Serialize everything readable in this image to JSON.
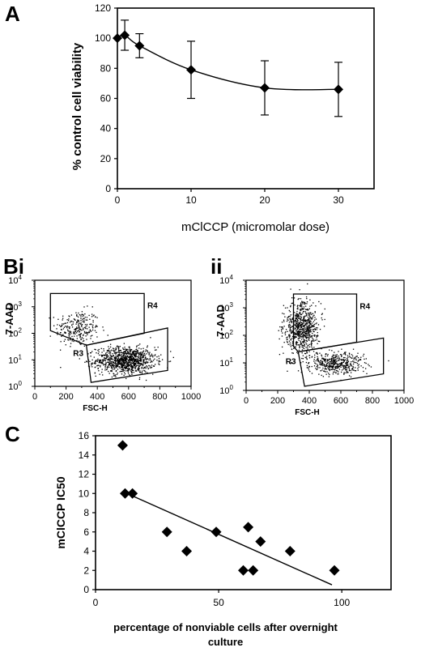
{
  "panel_labels": {
    "a": "A",
    "bi": "Bi",
    "bii": "ii",
    "c": "C"
  },
  "chart_data": [
    {
      "id": "A",
      "type": "line",
      "title": "",
      "xlabel": "mClCCP (micromolar dose)",
      "ylabel": "% control cell viability",
      "xlim": [
        0,
        30
      ],
      "ylim": [
        0,
        120
      ],
      "xticks": [
        0,
        10,
        20,
        30
      ],
      "yticks": [
        0,
        20,
        40,
        60,
        80,
        100,
        120
      ],
      "grid": false,
      "series": [
        {
          "x": [
            0,
            1,
            3,
            10,
            20,
            30
          ],
          "y": [
            100,
            102,
            95,
            79,
            67,
            66
          ],
          "err": [
            0,
            10,
            8,
            19,
            18,
            18
          ]
        }
      ]
    },
    {
      "id": "Bi",
      "type": "scatter",
      "title": "",
      "xlabel": "FSC-H",
      "ylabel": "7-AAD",
      "xlim": [
        0,
        1000
      ],
      "ylim": [
        0,
        4
      ],
      "yscale": "log",
      "xticks": [
        0,
        200,
        400,
        600,
        800,
        1000
      ],
      "yticks": [
        0,
        1,
        2,
        3,
        4
      ],
      "gates": [
        {
          "name": "R4",
          "polygon": [
            [
              100,
              3.5
            ],
            [
              700,
              3.5
            ],
            [
              700,
              2.0
            ],
            [
              330,
              1.55
            ],
            [
              100,
              2.1
            ]
          ]
        },
        {
          "name": "R3",
          "polygon": [
            [
              330,
              1.55
            ],
            [
              850,
              2.2
            ],
            [
              850,
              0.6
            ],
            [
              360,
              0.15
            ]
          ]
        }
      ],
      "clusters": [
        {
          "cx": 270,
          "cy": 2.2,
          "sx": 70,
          "sy": 0.35,
          "n": 260
        },
        {
          "cx": 580,
          "cy": 1.0,
          "sx": 95,
          "sy": 0.25,
          "n": 1000
        }
      ]
    },
    {
      "id": "Bii",
      "type": "scatter",
      "title": "",
      "xlabel": "FSC-H",
      "ylabel": "7-AAD",
      "xlim": [
        0,
        1000
      ],
      "ylim": [
        0,
        4
      ],
      "yscale": "log",
      "xticks": [
        0,
        200,
        400,
        600,
        800,
        1000
      ],
      "yticks": [
        0,
        1,
        2,
        3,
        4
      ],
      "gates": [
        {
          "name": "R4",
          "polygon": [
            [
              300,
              3.5
            ],
            [
              700,
              3.5
            ],
            [
              700,
              1.75
            ],
            [
              330,
              1.4
            ],
            [
              300,
              1.6
            ]
          ]
        },
        {
          "name": "R3",
          "polygon": [
            [
              330,
              1.4
            ],
            [
              870,
              1.9
            ],
            [
              870,
              0.6
            ],
            [
              370,
              0.15
            ]
          ]
        }
      ],
      "clusters": [
        {
          "cx": 350,
          "cy": 2.3,
          "sx": 55,
          "sy": 0.45,
          "n": 700
        },
        {
          "cx": 560,
          "cy": 1.0,
          "sx": 90,
          "sy": 0.2,
          "n": 450
        }
      ]
    },
    {
      "id": "C",
      "type": "scatter",
      "title": "",
      "xlabel": "percentage of nonviable cells after overnight culture",
      "ylabel": "mClCCP IC50",
      "xlim": [
        0,
        120
      ],
      "ylim": [
        0,
        16
      ],
      "xticks": [
        0,
        50,
        100
      ],
      "yticks": [
        0,
        2,
        4,
        6,
        8,
        10,
        12,
        14,
        16
      ],
      "grid": false,
      "points": [
        {
          "x": 11,
          "y": 15
        },
        {
          "x": 12,
          "y": 10
        },
        {
          "x": 15,
          "y": 10
        },
        {
          "x": 29,
          "y": 6
        },
        {
          "x": 37,
          "y": 4
        },
        {
          "x": 49,
          "y": 6
        },
        {
          "x": 60,
          "y": 2
        },
        {
          "x": 62,
          "y": 6.5
        },
        {
          "x": 64,
          "y": 2
        },
        {
          "x": 67,
          "y": 5
        },
        {
          "x": 79,
          "y": 4
        },
        {
          "x": 97,
          "y": 2
        }
      ],
      "trendline": {
        "x": [
          11,
          96
        ],
        "y": [
          10.2,
          0.5
        ]
      }
    }
  ]
}
